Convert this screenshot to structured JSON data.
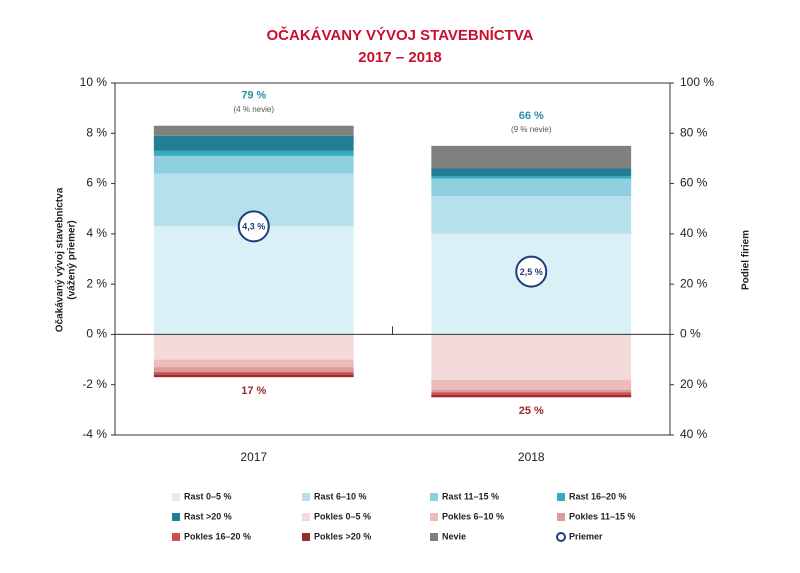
{
  "chart_data": {
    "type": "bar",
    "title": "OČAKÁVANY VÝVOJ STAVEBNÍCTVA",
    "subtitle": "2017 – 2018",
    "y_label": [
      "Očakávaný vývoj stavebníctva",
      "(vážený priemer)"
    ],
    "y2_label": "Podiel firiem",
    "categories": [
      "2017",
      "2018"
    ],
    "ylim": [
      -4,
      10
    ],
    "yticks": [
      {
        "value": -4,
        "label": "-4 %"
      },
      {
        "value": -2,
        "label": "-2 %"
      },
      {
        "value": 0,
        "label": "0 %"
      },
      {
        "value": 2,
        "label": "2 %"
      },
      {
        "value": 4,
        "label": "4 %"
      },
      {
        "value": 6,
        "label": "6 %"
      },
      {
        "value": 8,
        "label": "8 %"
      },
      {
        "value": 10,
        "label": "10 %"
      }
    ],
    "y2lim": [
      -40,
      100
    ],
    "y2ticks": [
      {
        "value": -40,
        "label": "40 %"
      },
      {
        "value": -20,
        "label": "20 %"
      },
      {
        "value": 0,
        "label": "0 %"
      },
      {
        "value": 20,
        "label": "20 %"
      },
      {
        "value": 40,
        "label": "40 %"
      },
      {
        "value": 60,
        "label": "60 %"
      },
      {
        "value": 80,
        "label": "80 %"
      },
      {
        "value": 100,
        "label": "100 %"
      }
    ],
    "stacked": true,
    "series": [
      {
        "name": "Rast 0–5 %",
        "color": "#daf0f7",
        "axis": "y2",
        "values": [
          43,
          40
        ]
      },
      {
        "name": "Rast 6–10 %",
        "color": "#b5e0ec",
        "axis": "y2",
        "values": [
          21,
          15
        ]
      },
      {
        "name": "Rast 11–15 %",
        "color": "#8fcfe0",
        "axis": "y2",
        "values": [
          7,
          7
        ]
      },
      {
        "name": "Rast 16–20 %",
        "color": "#3ba9c4",
        "axis": "y2",
        "values": [
          2,
          1
        ]
      },
      {
        "name": "Rast >20 %",
        "color": "#217e94",
        "axis": "y2",
        "values": [
          6,
          3
        ]
      },
      {
        "name": "Pokles 0–5 %",
        "color": "#f5dadb",
        "axis": "y2",
        "values": [
          -10,
          -18
        ]
      },
      {
        "name": "Pokles 6–10 %",
        "color": "#ecbcbc",
        "axis": "y2",
        "values": [
          -3,
          -4
        ]
      },
      {
        "name": "Pokles 11–15 %",
        "color": "#dd9a9a",
        "axis": "y2",
        "values": [
          -2,
          -1
        ]
      },
      {
        "name": "Pokles 16–20 %",
        "color": "#c9504e",
        "axis": "y2",
        "values": [
          -1,
          -1
        ]
      },
      {
        "name": "Pokles >20 %",
        "color": "#9b2a2a",
        "axis": "y2",
        "values": [
          -1,
          -1
        ]
      },
      {
        "name": "Nevie",
        "color": "#808080",
        "axis": "y2",
        "values": [
          4,
          9
        ]
      },
      {
        "name": "Priemer",
        "color": "#1f3d7a",
        "marker": "circle",
        "values": [
          4.3,
          2.5
        ],
        "value_labels": [
          "4,3 %",
          "2,5 %"
        ]
      }
    ],
    "bar_labels": [
      {
        "total": "79 %",
        "nevie": "(4 % nevie)",
        "negative": "17 %"
      },
      {
        "total": "66 %",
        "nevie": "(9 % nevie)",
        "negative": "25 %"
      }
    ]
  }
}
